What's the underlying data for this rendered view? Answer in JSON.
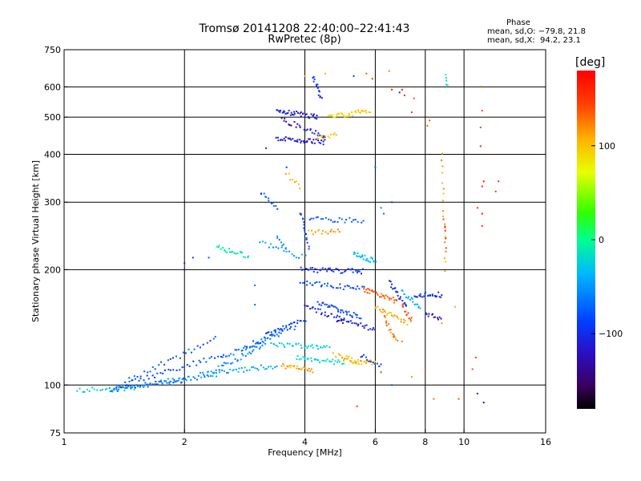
{
  "title": "Tromsø 20141208 22:40:00–22:41:43",
  "subtitle": "RwPretec (8p)",
  "stats": {
    "title": "Phase",
    "o_line": "mean, sd,O: −79.8, 21.8",
    "x_line": "mean, sd,X:  94.2, 23.1"
  },
  "chart_data": {
    "type": "scatter",
    "xlabel": "Frequency [MHz]",
    "ylabel": "Stationary phase Virtual Height [km]",
    "xscale": "log",
    "yscale": "log",
    "xlim": [
      1,
      16
    ],
    "ylim": [
      75,
      750
    ],
    "xticks": [
      1,
      2,
      4,
      6,
      8,
      10,
      16
    ],
    "xtick_labels": [
      "1",
      "2",
      "4",
      "6",
      "8",
      "10",
      "16"
    ],
    "xgrid": [
      2,
      4,
      6,
      8,
      10
    ],
    "yticks": [
      75,
      100,
      200,
      300,
      400,
      500,
      600,
      750
    ],
    "ytick_labels": [
      "75",
      "100",
      "200",
      "300",
      "400",
      "500",
      "600",
      "750"
    ],
    "ygrid": [
      100,
      200,
      300,
      400,
      500,
      600
    ],
    "grid": true,
    "colorbar": {
      "label": "[deg]",
      "range": [
        -180,
        180
      ],
      "ticks": [
        100,
        0,
        -100
      ],
      "tick_labels": [
        "100",
        "0",
        "−100"
      ]
    },
    "series": [
      {
        "traces": [
          [
            1.08,
            97,
            1.5,
            98,
            -25,
            24
          ],
          [
            1.3,
            97,
            1.6,
            100,
            -65,
            30
          ],
          [
            1.6,
            100,
            2.0,
            103,
            -80,
            30
          ],
          [
            1.75,
            102,
            2.4,
            106,
            -55,
            30
          ],
          [
            2.2,
            107,
            3.4,
            112,
            -45,
            40
          ],
          [
            1.35,
            99,
            2.5,
            120,
            -90,
            40
          ],
          [
            1.45,
            103,
            2.4,
            132,
            -80,
            30
          ],
          [
            2.4,
            110,
            3.2,
            128,
            -60,
            30
          ],
          [
            2.5,
            118,
            3.5,
            138,
            -70,
            30
          ],
          [
            2.8,
            125,
            3.8,
            142,
            -80,
            25
          ],
          [
            3.2,
            135,
            4.0,
            148,
            -95,
            25
          ],
          [
            3.3,
            128,
            4.6,
            125,
            -25,
            35
          ],
          [
            3.8,
            118,
            5.0,
            114,
            -20,
            30
          ],
          [
            3.5,
            112,
            4.2,
            109,
            110,
            25
          ],
          [
            5.0,
            116,
            6.0,
            114,
            100,
            25
          ],
          [
            2.4,
            229,
            2.9,
            217,
            -15,
            22
          ],
          [
            3.1,
            235,
            4.0,
            215,
            -55,
            18
          ],
          [
            3.1,
            318,
            3.4,
            290,
            -80,
            12
          ],
          [
            3.4,
            245,
            3.6,
            225,
            -60,
            8
          ],
          [
            3.6,
            355,
            3.9,
            330,
            110,
            8
          ],
          [
            3.4,
            440,
            4.5,
            430,
            -115,
            40
          ],
          [
            3.4,
            520,
            4.3,
            500,
            -110,
            40
          ],
          [
            4.2,
            640,
            4.4,
            560,
            -100,
            14
          ],
          [
            3.5,
            495,
            3.9,
            470,
            -130,
            12
          ],
          [
            4.0,
            470,
            4.5,
            445,
            -110,
            14
          ],
          [
            4.6,
            500,
            5.8,
            520,
            95,
            35
          ],
          [
            4.3,
            440,
            4.8,
            450,
            105,
            12
          ],
          [
            3.9,
            282,
            4.1,
            230,
            -95,
            16
          ],
          [
            4.1,
            272,
            5.6,
            268,
            -80,
            24
          ],
          [
            4.1,
            250,
            4.9,
            252,
            115,
            16
          ],
          [
            3.9,
            200,
            5.6,
            198,
            -100,
            40
          ],
          [
            3.9,
            185,
            5.6,
            178,
            -85,
            35
          ],
          [
            4.3,
            165,
            5.5,
            150,
            -90,
            35
          ],
          [
            4.0,
            160,
            5.0,
            148,
            -110,
            25
          ],
          [
            5.3,
            220,
            6.0,
            210,
            -35,
            25
          ],
          [
            5.6,
            178,
            6.8,
            165,
            135,
            30
          ],
          [
            6.0,
            160,
            7.2,
            145,
            110,
            25
          ],
          [
            6.3,
            150,
            6.8,
            130,
            130,
            15
          ],
          [
            6.5,
            185,
            7.2,
            160,
            -100,
            20
          ],
          [
            7.0,
            160,
            7.4,
            148,
            140,
            12
          ],
          [
            7.0,
            175,
            7.8,
            158,
            -45,
            16
          ],
          [
            7.5,
            172,
            8.8,
            172,
            -100,
            24
          ],
          [
            8.0,
            152,
            8.8,
            150,
            -120,
            12
          ],
          [
            4.8,
            148,
            6.0,
            140,
            -110,
            25
          ],
          [
            4.7,
            120,
            5.5,
            115,
            110,
            15
          ],
          [
            5.5,
            120,
            6.2,
            112,
            -90,
            12
          ],
          [
            8.8,
            400,
            9.0,
            200,
            115,
            18
          ],
          [
            8.9,
            270,
            9.0,
            230,
            160,
            5
          ],
          [
            9.0,
            640,
            9.1,
            600,
            -10,
            5
          ]
        ]
      },
      {
        "isolated": [
          [
            6.5,
            660,
            125
          ],
          [
            6.6,
            590,
            170
          ],
          [
            7.0,
            590,
            170
          ],
          [
            6.9,
            580,
            -110
          ],
          [
            7.1,
            570,
            160
          ],
          [
            7.5,
            560,
            140
          ],
          [
            7.4,
            515,
            155
          ],
          [
            8.1,
            475,
            135
          ],
          [
            8.2,
            490,
            140
          ],
          [
            11.0,
            600,
            150
          ],
          [
            11.1,
            520,
            140
          ],
          [
            11.0,
            470,
            145
          ],
          [
            11.0,
            420,
            160
          ],
          [
            11.2,
            340,
            175
          ],
          [
            11.1,
            330,
            165
          ],
          [
            12.2,
            340,
            160
          ],
          [
            11.1,
            280,
            175
          ],
          [
            11.1,
            260,
            155
          ],
          [
            12.0,
            320,
            150
          ],
          [
            10.8,
            290,
            150
          ],
          [
            6.0,
            370,
            -80
          ],
          [
            6.2,
            290,
            -60
          ],
          [
            6.6,
            300,
            -90
          ],
          [
            6.3,
            280,
            -70
          ],
          [
            5.3,
            640,
            -90
          ],
          [
            5.7,
            650,
            140
          ],
          [
            5.9,
            630,
            150
          ],
          [
            4.5,
            650,
            110
          ],
          [
            4.0,
            640,
            120
          ],
          [
            3.2,
            415,
            -110
          ],
          [
            3.6,
            370,
            -100
          ],
          [
            2.0,
            208,
            -110
          ],
          [
            2.1,
            215,
            -95
          ],
          [
            2.0,
            200,
            -120
          ],
          [
            2.3,
            215,
            -80
          ],
          [
            3.0,
            162,
            -80
          ],
          [
            3.0,
            182,
            -70
          ],
          [
            10.8,
            95,
            -110
          ],
          [
            11.2,
            90,
            -150
          ],
          [
            8.4,
            92,
            130
          ],
          [
            9.7,
            92,
            140
          ],
          [
            5.4,
            88,
            150
          ],
          [
            7.0,
            130,
            130
          ],
          [
            10.5,
            110,
            140
          ],
          [
            10.7,
            118,
            150
          ],
          [
            8.8,
            145,
            120
          ],
          [
            9.5,
            160,
            110
          ],
          [
            8.0,
            110,
            140
          ],
          [
            7.4,
            105,
            120
          ],
          [
            6.6,
            100,
            -80
          ],
          [
            6.2,
            108,
            150
          ]
        ]
      }
    ]
  }
}
